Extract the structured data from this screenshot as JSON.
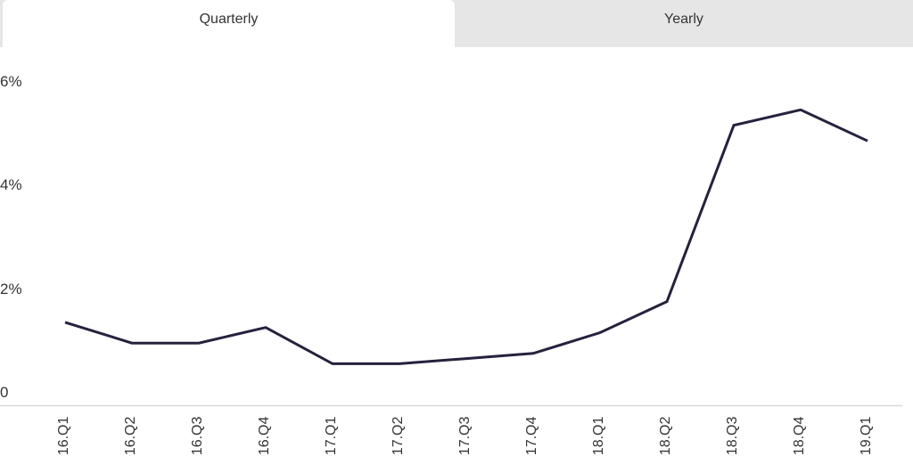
{
  "tabs": [
    {
      "label": "Quarterly",
      "active": true
    },
    {
      "label": "Yearly",
      "active": false
    }
  ],
  "colors": {
    "line": "#25223d",
    "axis": "#d9d9d9",
    "tab_inactive_bg": "#e6e6e6",
    "text": "#333333"
  },
  "chart_data": {
    "type": "line",
    "title": "",
    "xlabel": "",
    "ylabel": "",
    "categories": [
      "2016.Q1",
      "2016.Q2",
      "2016.Q3",
      "2016.Q4",
      "2017.Q1",
      "2017.Q2",
      "2017.Q3",
      "2017.Q4",
      "2018.Q1",
      "2018.Q2",
      "2018.Q3",
      "2018.Q4",
      "2019.Q1"
    ],
    "series": [
      {
        "name": "Quarterly",
        "values": [
          1.6,
          1.2,
          1.2,
          1.5,
          0.8,
          0.8,
          0.9,
          1.0,
          1.4,
          2.0,
          5.4,
          5.7,
          5.1
        ]
      }
    ],
    "yticks": [
      "0",
      "2%",
      "4%",
      "6%"
    ],
    "ytick_values": [
      0,
      2,
      4,
      6
    ],
    "ylim": [
      0,
      6
    ],
    "grid": false,
    "legend": "none"
  }
}
